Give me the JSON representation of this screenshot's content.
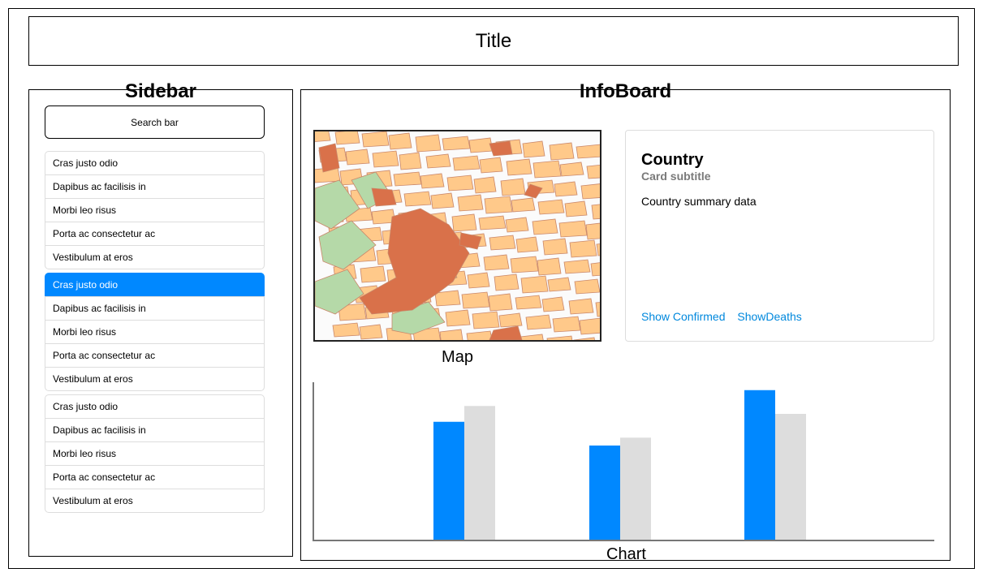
{
  "header": {
    "title": "Title"
  },
  "sidebar": {
    "heading": "Sidebar",
    "search_label": "Search bar",
    "groups": [
      {
        "items": [
          {
            "label": "Cras justo odio",
            "active": false
          },
          {
            "label": "Dapibus ac facilisis in",
            "active": false
          },
          {
            "label": "Morbi leo risus",
            "active": false
          },
          {
            "label": "Porta ac consectetur ac",
            "active": false
          },
          {
            "label": "Vestibulum at eros",
            "active": false
          }
        ]
      },
      {
        "items": [
          {
            "label": "Cras justo odio",
            "active": true
          },
          {
            "label": "Dapibus ac facilisis in",
            "active": false
          },
          {
            "label": "Morbi leo risus",
            "active": false
          },
          {
            "label": "Porta ac consectetur ac",
            "active": false
          },
          {
            "label": "Vestibulum at eros",
            "active": false
          }
        ]
      },
      {
        "items": [
          {
            "label": "Cras justo odio",
            "active": false
          },
          {
            "label": "Dapibus ac facilisis in",
            "active": false
          },
          {
            "label": "Morbi leo risus",
            "active": false
          },
          {
            "label": "Porta ac consectetur ac",
            "active": false
          },
          {
            "label": "Vestibulum at eros",
            "active": false
          }
        ]
      }
    ]
  },
  "infoboard": {
    "heading": "InfoBoard",
    "map_caption": "Map",
    "card": {
      "title": "Country",
      "subtitle": "Card subtitle",
      "text": "Country summary data",
      "links": [
        "Show Confirmed",
        "ShowDeaths"
      ]
    },
    "chart_caption": "Chart"
  },
  "colors": {
    "accent": "#0088ff",
    "secondary_bar": "#dddddd",
    "link": "#0088dd",
    "map_block": "#ffc98a",
    "map_park": "#b5d9a8",
    "map_landmark": "#d9714a"
  },
  "icons": [
    "map-image"
  ],
  "chart_data": {
    "type": "bar",
    "categories": [
      "",
      "",
      ""
    ],
    "series": [
      {
        "values": [
          75,
          60,
          95
        ],
        "color": "#0088ff"
      },
      {
        "values": [
          85,
          65,
          80
        ],
        "color": "#dddddd"
      }
    ],
    "ylim": [
      0,
      100
    ],
    "grid": false,
    "legend": "none"
  }
}
